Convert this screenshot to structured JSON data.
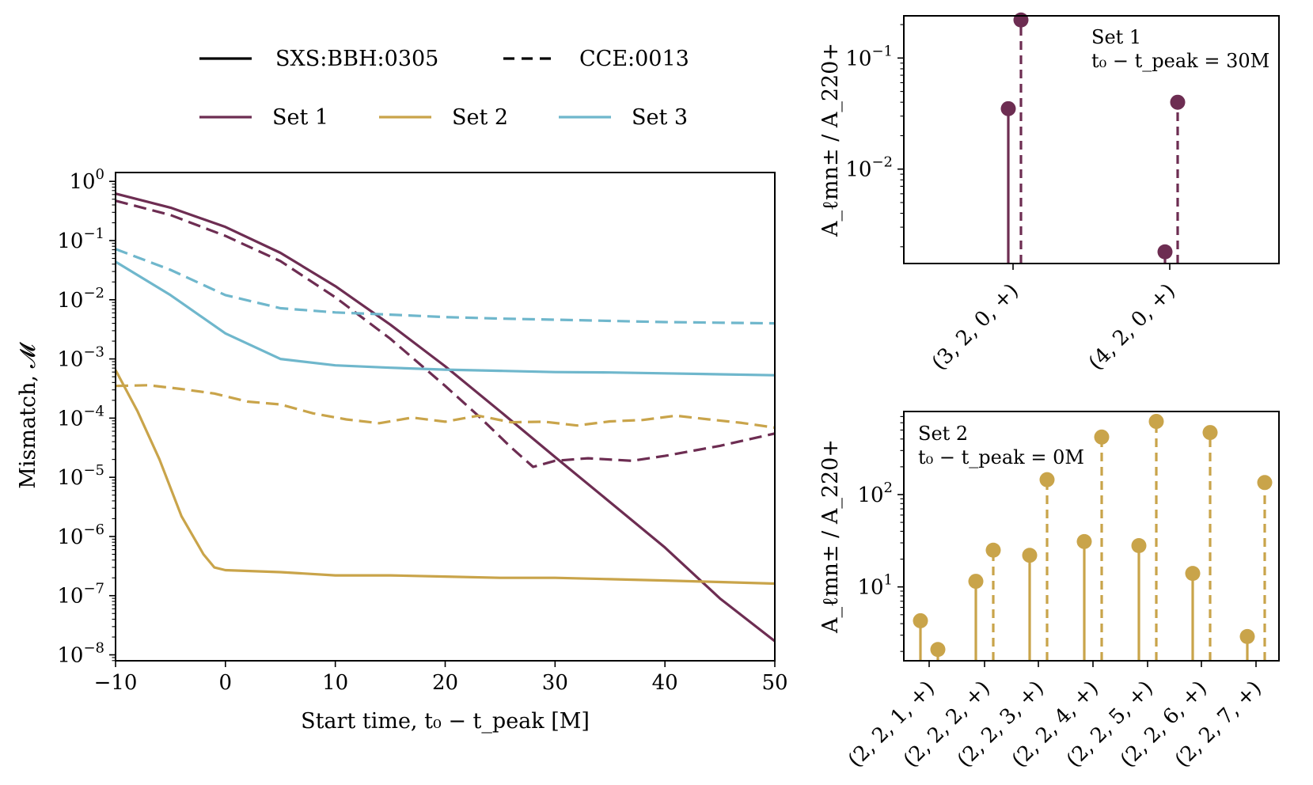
{
  "colors": {
    "set1": "#6d2d52",
    "set2": "#c9a44a",
    "set3": "#6fb7cc",
    "axis": "#000000"
  },
  "legend": {
    "style_entries": [
      {
        "label": "SXS:BBH:0305",
        "linestyle": "solid"
      },
      {
        "label": "CCE:0013",
        "linestyle": "dashed"
      }
    ],
    "color_entries": [
      {
        "label": "Set 1",
        "color_key": "set1"
      },
      {
        "label": "Set 2",
        "color_key": "set2"
      },
      {
        "label": "Set 3",
        "color_key": "set3"
      }
    ]
  },
  "chart_data": [
    {
      "id": "mismatch",
      "type": "line",
      "xlabel": "Start time, t₀ − t_peak [M]",
      "ylabel": "Mismatch, 𝓜",
      "yscale": "log",
      "xlim": [
        -10,
        50
      ],
      "ylim_exp": [
        -8.1,
        0.15
      ],
      "xticks": [
        -10,
        0,
        10,
        20,
        30,
        40,
        50
      ],
      "xtick_labels": [
        "−10",
        "0",
        "10",
        "20",
        "30",
        "40",
        "50"
      ],
      "yticks_exp": [
        0,
        -1,
        -2,
        -3,
        -4,
        -5,
        -6,
        -7,
        -8
      ],
      "series": [
        {
          "name": "Set 1 — SXS:BBH:0305",
          "color_key": "set1",
          "dash": false,
          "x": [
            -10,
            -5,
            0,
            5,
            10,
            15,
            20,
            25,
            30,
            35,
            40,
            45,
            50
          ],
          "y": [
            0.62,
            0.36,
            0.17,
            0.062,
            0.017,
            0.0038,
            0.00075,
            0.00013,
            2.2e-05,
            3.8e-06,
            6.5e-07,
            9e-08,
            1.7e-08
          ]
        },
        {
          "name": "Set 1 — CCE:0013",
          "color_key": "set1",
          "dash": true,
          "x": [
            -10,
            -5,
            0,
            5,
            10,
            15,
            20,
            23,
            26,
            28,
            30,
            33,
            37,
            40,
            45,
            50
          ],
          "y": [
            0.47,
            0.27,
            0.12,
            0.045,
            0.011,
            0.0022,
            0.00035,
            0.00011,
            3.2e-05,
            1.5e-05,
            1.9e-05,
            2.1e-05,
            1.9e-05,
            2.3e-05,
            3.4e-05,
            5.5e-05
          ]
        },
        {
          "name": "Set 2 — SXS:BBH:0305",
          "color_key": "set2",
          "dash": false,
          "x": [
            -10,
            -8,
            -6,
            -4,
            -2,
            -1,
            0,
            5,
            10,
            15,
            20,
            25,
            30,
            35,
            40,
            45,
            50
          ],
          "y": [
            0.00065,
            0.00013,
            2e-05,
            2.2e-06,
            5e-07,
            3e-07,
            2.7e-07,
            2.5e-07,
            2.2e-07,
            2.2e-07,
            2.1e-07,
            2e-07,
            2e-07,
            1.9e-07,
            1.8e-07,
            1.7e-07,
            1.6e-07
          ]
        },
        {
          "name": "Set 2 — CCE:0013",
          "color_key": "set2",
          "dash": true,
          "x": [
            -10,
            -7,
            -4,
            -1,
            2,
            5,
            8,
            11,
            14,
            17,
            20,
            23,
            26,
            29,
            32,
            35,
            38,
            41,
            44,
            47,
            50
          ],
          "y": [
            0.00035,
            0.00036,
            0.00031,
            0.00026,
            0.00019,
            0.00017,
            0.00012,
            9.5e-05,
            8.2e-05,
            0.000102,
            8.7e-05,
            0.00011,
            8.5e-05,
            8.7e-05,
            7.5e-05,
            8.8e-05,
            9.3e-05,
            0.00011,
            9.5e-05,
            8.3e-05,
            6.9e-05
          ]
        },
        {
          "name": "Set 3 — SXS:BBH:0305",
          "color_key": "set3",
          "dash": false,
          "x": [
            -10,
            -5,
            0,
            5,
            10,
            15,
            20,
            25,
            30,
            35,
            40,
            45,
            50
          ],
          "y": [
            0.044,
            0.012,
            0.0027,
            0.001,
            0.00078,
            0.00071,
            0.00066,
            0.00063,
            0.0006,
            0.00059,
            0.00057,
            0.00055,
            0.00053
          ]
        },
        {
          "name": "Set 3 — CCE:0013",
          "color_key": "set3",
          "dash": true,
          "x": [
            -10,
            -5,
            0,
            5,
            10,
            15,
            20,
            25,
            30,
            35,
            40,
            45,
            50
          ],
          "y": [
            0.072,
            0.032,
            0.012,
            0.0072,
            0.0061,
            0.0056,
            0.0051,
            0.0048,
            0.0046,
            0.0044,
            0.0042,
            0.0041,
            0.004
          ]
        }
      ]
    },
    {
      "id": "set1-amplitudes",
      "type": "stem",
      "ylabel": "A_ℓmn± / A_220+",
      "yscale": "log",
      "ylim_exp": [
        -2.85,
        -0.62
      ],
      "yticks_exp": [
        -1,
        -2
      ],
      "annotation": [
        "Set 1",
        "t₀ − t_peak = 30M"
      ],
      "categories": [
        "(3, 2, 0, +)",
        "(4, 2, 0, +)"
      ],
      "series": [
        {
          "name": "SXS:BBH:0305",
          "dash": false,
          "values": [
            0.035,
            0.0018
          ]
        },
        {
          "name": "CCE:0013",
          "dash": true,
          "values": [
            0.22,
            0.04
          ]
        }
      ]
    },
    {
      "id": "set2-amplitudes",
      "type": "stem",
      "ylabel": "A_ℓmn± / A_220+",
      "yscale": "log",
      "ylim_exp": [
        0.2,
        2.9
      ],
      "yticks_exp": [
        2,
        1
      ],
      "annotation": [
        "Set 2",
        "t₀ − t_peak = 0M"
      ],
      "categories": [
        "(2, 2, 1, +)",
        "(2, 2, 2, +)",
        "(2, 2, 3, +)",
        "(2, 2, 4, +)",
        "(2, 2, 5, +)",
        "(2, 2, 6, +)",
        "(2, 2, 7, +)"
      ],
      "series": [
        {
          "name": "SXS:BBH:0305",
          "dash": false,
          "values": [
            4.3,
            11.5,
            22,
            31,
            28,
            14,
            2.9
          ]
        },
        {
          "name": "CCE:0013",
          "dash": true,
          "values": [
            2.1,
            25,
            145,
            420,
            620,
            470,
            135
          ]
        }
      ]
    }
  ]
}
